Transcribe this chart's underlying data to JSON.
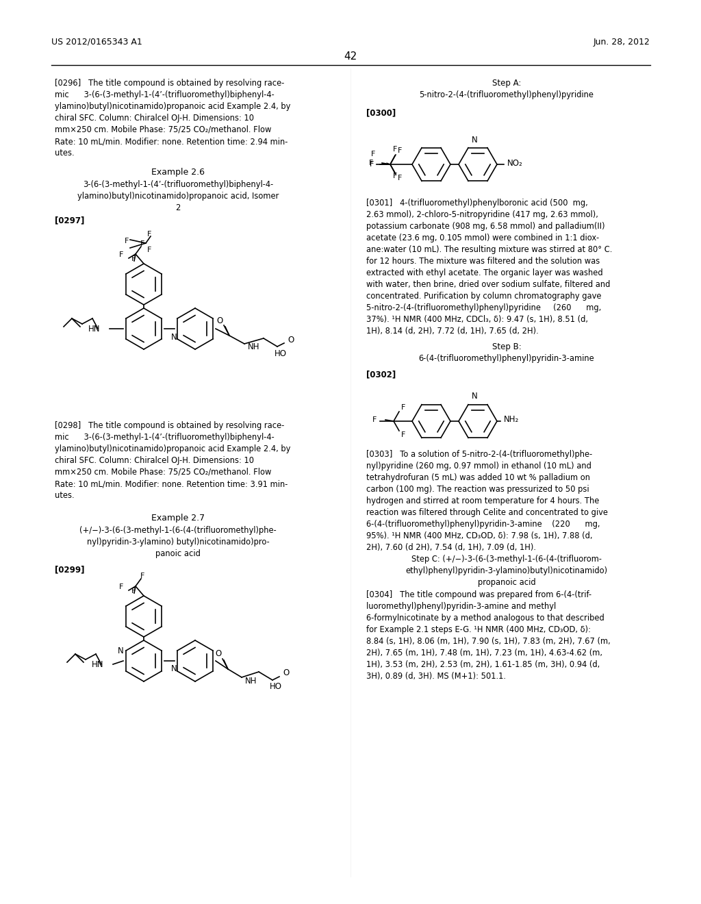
{
  "background_color": "#ffffff",
  "header_left": "US 2012/0165343 A1",
  "header_right": "Jun. 28, 2012",
  "page_number": "42",
  "left_column": {
    "para0296": "[0296] The title compound is obtained by resolving racemic 3-(6-(3-methyl-1-(4’-(trifluoromethyl)biphenyl-4-ylamino)butyl)nicotinamido)propanoic acid Example 2.4, by chiral SFC. Column: Chiralcel OJ-H. Dimensions: 10 mm×250 cm. Mobile Phase: 75/25 CO₂/methanol. Flow Rate: 10 mL/min. Modifier: none. Retention time: 2.94 minutes.",
    "example26_title": "Example 2.6",
    "example26_name": "3-(6-(3-methyl-1-(4’-(trifluoromethyl)biphenyl-4-ylamino)butyl)nicotinamido)propanoic acid, Isomer\n2",
    "para0297": "[0297]",
    "para0298": "[0298] The title compound is obtained by resolving racemic 3-(6-(3-methyl-1-(4’-(trifluoromethyl)biphenyl-4-ylamino)butyl)nicotinamido)propanoic acid Example 2.4, by chiral SFC. Column: Chiralcel OJ-H. Dimensions: 10 mm×250 cm. Mobile Phase: 75/25 CO₂/methanol. Flow Rate: 10 mL/min. Modifier: none. Retention time: 3.91 minutes.",
    "example27_title": "Example 2.7",
    "example27_name": "(+/−)-3-(6-(3-methyl-1-(6-(4-(trifluoromethyl)phenyl)pyridin-3-ylamino) butyl)nicotinamido)propanoic acid",
    "para0299": "[0299]"
  },
  "right_column": {
    "stepA_title": "Step A:",
    "stepA_name": "5-nitro-2-(4-(trifluoromethyl)phenyl)pyridine",
    "para0300": "[0300]",
    "para0301": "[0301]  4-(trifluoromethyl)phenylboronic acid (500 mg, 2.63 mmol), 2-chloro-5-nitropyridine (417 mg, 2.63 mmol), potassium carbonate (908 mg, 6.58 mmol) and palladium(II) acetate (23.6 mg, 0.105 mmol) were combined in 1:1 dioxane:water (10 mL). The resulting mixture was stirred at 80° C. for 12 hours. The mixture was filtered and the solution was extracted with ethyl acetate. The organic layer was washed with water, then brine, dried over sodium sulfate, filtered and concentrated. Purification by column chromatography gave 5-nitro-2-(4-(trifluoromethyl)phenyl)pyridine (260 mg, 37%). ¹H NMR (400 MHz, CDCl₃, δ): 9.47 (s, 1H), 8.51 (d, 1H), 8.14 (d, 2H), 7.72 (d, 1H), 7.65 (d, 2H).",
    "stepB_title": "Step B:",
    "stepB_name": "6-(4-(trifluoromethyl)phenyl)pyridin-3-amine",
    "para0302": "[0302]",
    "para0303": "[0303] To a solution of 5-nitro-2-(4-(trifluoromethyl)phenyl)pyridine (260 mg, 0.97 mmol) in ethanol (10 mL) and tetrahydrofuran (5 mL) was added 10 wt % palladium on carbon (100 mg). The reaction was pressurized to 50 psi hydrogen and stirred at room temperature for 4 hours. The reaction was filtered through Celite and concentrated to give 6-(4-(trifluoromethyl)phenyl)pyridin-3-amine (220 mg, 95%). ¹H NMR (400 MHz, CD₃OD, δ): 7.98 (s, 1H), 7.88 (d, 2H), 7.60 (d 2H), 7.54 (d, 1H), 7.09 (d, 1H).",
    "stepC_title": "Step C: (+/−)-3-(6-(3-methyl-1-(6-(4-(trifluoromethyl)phenyl)pyridin-3-ylamino)butyl)nicotinamido)\npropanoic acid",
    "para0304": "[0304] The title compound was prepared from 6-(4-(trifluoromethyl)phenyl)pyridin-3-amine and methyl 6-formylnicotinate by a method analogous to that described for Example 2.1 steps E-G. ¹H NMR (400 MHz, CD₃OD, δ): 8.84 (s, 1H), 8.06 (m, 1H), 7.90 (s, 1H), 7.83 (m, 2H), 7.67 (m, 2H), 7.65 (m, 1H), 7.48 (m, 1H), 7.23 (m, 1H), 4.63-4.62 (m, 1H), 3.53 (m, 2H), 2.53 (m, 2H), 1.61-1.85 (m, 3H), 0.94 (d, 3H), 0.89 (d, 3H). MS (M+1): 501.1."
  }
}
